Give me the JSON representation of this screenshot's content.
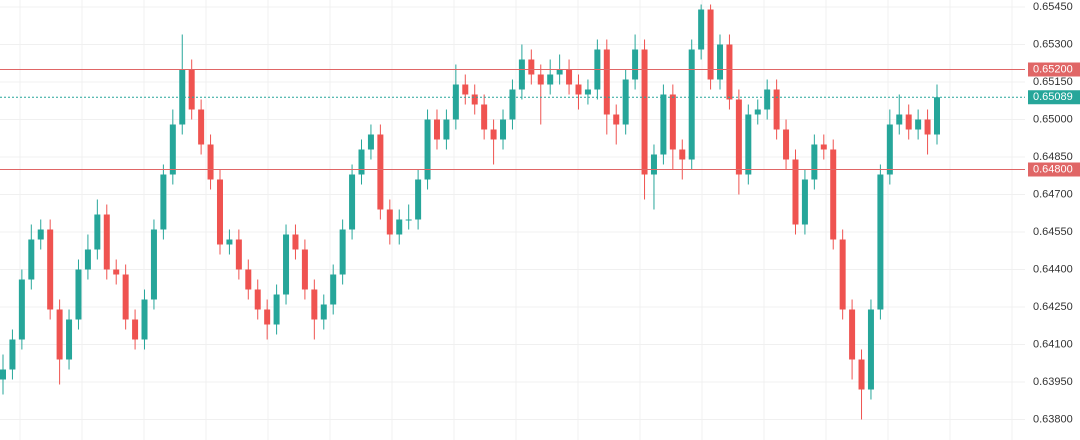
{
  "chart_data": {
    "type": "candlestick",
    "up_color": "#26a69a",
    "down_color": "#ef5350",
    "grid": true,
    "ylim": [
      0.63718,
      0.65478
    ],
    "yticks": [
      {
        "value": 0.6545,
        "label": "0.65450"
      },
      {
        "value": 0.653,
        "label": "0.65300"
      },
      {
        "value": 0.6515,
        "label": "0.65150"
      },
      {
        "value": 0.65,
        "label": "0.65000"
      },
      {
        "value": 0.6485,
        "label": "0.64850"
      },
      {
        "value": 0.647,
        "label": "0.64700"
      },
      {
        "value": 0.6455,
        "label": "0.64550"
      },
      {
        "value": 0.644,
        "label": "0.64400"
      },
      {
        "value": 0.6425,
        "label": "0.64250"
      },
      {
        "value": 0.641,
        "label": "0.64100"
      },
      {
        "value": 0.6395,
        "label": "0.63950"
      },
      {
        "value": 0.638,
        "label": "0.63800"
      }
    ],
    "hlines": [
      {
        "value": 0.652,
        "label": "0.65200",
        "color": "#e06666"
      },
      {
        "value": 0.648,
        "label": "0.64800",
        "color": "#e06666"
      }
    ],
    "last_price": {
      "value": 0.65089,
      "label": "0.65089",
      "color": "#26a69a"
    },
    "open": [
      0.6396,
      0.64,
      0.6412,
      0.6436,
      0.6452,
      0.6456,
      0.6424,
      0.6404,
      0.642,
      0.644,
      0.6448,
      0.6462,
      0.644,
      0.6438,
      0.642,
      0.6412,
      0.6428,
      0.6456,
      0.6478,
      0.6498,
      0.652,
      0.6504,
      0.649,
      0.6476,
      0.645,
      0.6452,
      0.644,
      0.6432,
      0.6424,
      0.6418,
      0.643,
      0.6454,
      0.6448,
      0.6432,
      0.642,
      0.6426,
      0.6438,
      0.6456,
      0.6478,
      0.6488,
      0.6494,
      0.6464,
      0.6454,
      0.646,
      0.646,
      0.6476,
      0.65,
      0.6492,
      0.65,
      0.6514,
      0.651,
      0.6506,
      0.6496,
      0.6492,
      0.65,
      0.6512,
      0.6524,
      0.6518,
      0.6514,
      0.6518,
      0.652,
      0.6514,
      0.651,
      0.6512,
      0.6528,
      0.6502,
      0.6498,
      0.6516,
      0.6528,
      0.6478,
      0.6486,
      0.651,
      0.6488,
      0.6484,
      0.6528,
      0.6544,
      0.6516,
      0.653,
      0.6508,
      0.6478,
      0.6502,
      0.6504,
      0.6512,
      0.6496,
      0.6484,
      0.6458,
      0.6476,
      0.649,
      0.6488,
      0.6452,
      0.6424,
      0.6404,
      0.6392,
      0.6424,
      0.6478,
      0.6498,
      0.6502,
      0.6496,
      0.65,
      0.6494
    ],
    "high": [
      0.6406,
      0.6416,
      0.644,
      0.6458,
      0.646,
      0.646,
      0.6428,
      0.6424,
      0.6444,
      0.6454,
      0.6468,
      0.6466,
      0.6444,
      0.6442,
      0.6424,
      0.6432,
      0.646,
      0.6482,
      0.6504,
      0.6534,
      0.6524,
      0.6508,
      0.6494,
      0.648,
      0.6456,
      0.6456,
      0.6444,
      0.6436,
      0.6428,
      0.6434,
      0.6458,
      0.6458,
      0.6452,
      0.6436,
      0.643,
      0.6442,
      0.646,
      0.6482,
      0.6492,
      0.6498,
      0.6498,
      0.6468,
      0.6464,
      0.6466,
      0.648,
      0.6504,
      0.6504,
      0.6504,
      0.6522,
      0.6518,
      0.6514,
      0.651,
      0.65,
      0.6504,
      0.6516,
      0.653,
      0.6528,
      0.6522,
      0.6524,
      0.6526,
      0.6524,
      0.6518,
      0.6516,
      0.6532,
      0.6532,
      0.6506,
      0.652,
      0.6534,
      0.6532,
      0.649,
      0.6514,
      0.6514,
      0.6492,
      0.6532,
      0.6546,
      0.6546,
      0.6534,
      0.6534,
      0.6512,
      0.6506,
      0.6508,
      0.6516,
      0.6516,
      0.65,
      0.6488,
      0.648,
      0.6494,
      0.6494,
      0.6492,
      0.6456,
      0.6428,
      0.6408,
      0.6428,
      0.6482,
      0.6504,
      0.651,
      0.6506,
      0.6504,
      0.6504,
      0.6514
    ],
    "low": [
      0.639,
      0.6396,
      0.6408,
      0.6432,
      0.6448,
      0.642,
      0.6394,
      0.64,
      0.6416,
      0.6436,
      0.6444,
      0.6436,
      0.6434,
      0.6416,
      0.6408,
      0.6408,
      0.6424,
      0.6452,
      0.6474,
      0.6494,
      0.65,
      0.6486,
      0.6472,
      0.6446,
      0.6446,
      0.6436,
      0.6428,
      0.642,
      0.6412,
      0.6414,
      0.6426,
      0.6444,
      0.6428,
      0.6412,
      0.6416,
      0.6422,
      0.6434,
      0.6452,
      0.6474,
      0.6484,
      0.646,
      0.645,
      0.645,
      0.6456,
      0.6456,
      0.6472,
      0.6488,
      0.6488,
      0.6496,
      0.6506,
      0.6502,
      0.6492,
      0.6482,
      0.6488,
      0.6496,
      0.6508,
      0.6514,
      0.6498,
      0.651,
      0.6514,
      0.651,
      0.6504,
      0.6506,
      0.6508,
      0.6494,
      0.649,
      0.6494,
      0.6512,
      0.6468,
      0.6464,
      0.6482,
      0.648,
      0.6476,
      0.648,
      0.6524,
      0.6512,
      0.6512,
      0.6504,
      0.647,
      0.6474,
      0.6498,
      0.65,
      0.6492,
      0.648,
      0.6454,
      0.6454,
      0.6472,
      0.6484,
      0.6448,
      0.642,
      0.6396,
      0.638,
      0.6388,
      0.642,
      0.6474,
      0.6494,
      0.6492,
      0.6492,
      0.6486,
      0.649
    ],
    "close": [
      0.64,
      0.6412,
      0.6436,
      0.6452,
      0.6456,
      0.6424,
      0.6404,
      0.642,
      0.644,
      0.6448,
      0.6462,
      0.644,
      0.6438,
      0.642,
      0.6412,
      0.6428,
      0.6456,
      0.6478,
      0.6498,
      0.652,
      0.6504,
      0.649,
      0.6476,
      0.645,
      0.6452,
      0.644,
      0.6432,
      0.6424,
      0.6418,
      0.643,
      0.6454,
      0.6448,
      0.6432,
      0.642,
      0.6426,
      0.6438,
      0.6456,
      0.6478,
      0.6488,
      0.6494,
      0.6464,
      0.6454,
      0.646,
      0.646,
      0.6476,
      0.65,
      0.6492,
      0.65,
      0.6514,
      0.651,
      0.6506,
      0.6496,
      0.6492,
      0.65,
      0.6512,
      0.6524,
      0.6518,
      0.6514,
      0.6518,
      0.652,
      0.6514,
      0.651,
      0.6512,
      0.6528,
      0.6502,
      0.6498,
      0.6516,
      0.6528,
      0.6478,
      0.6486,
      0.651,
      0.6488,
      0.6484,
      0.6528,
      0.6544,
      0.6516,
      0.653,
      0.6508,
      0.6478,
      0.6502,
      0.6504,
      0.6512,
      0.6496,
      0.6484,
      0.6458,
      0.6476,
      0.649,
      0.6488,
      0.6452,
      0.6424,
      0.6404,
      0.6392,
      0.6424,
      0.6478,
      0.6498,
      0.6502,
      0.6496,
      0.65,
      0.6494,
      0.65089
    ]
  }
}
